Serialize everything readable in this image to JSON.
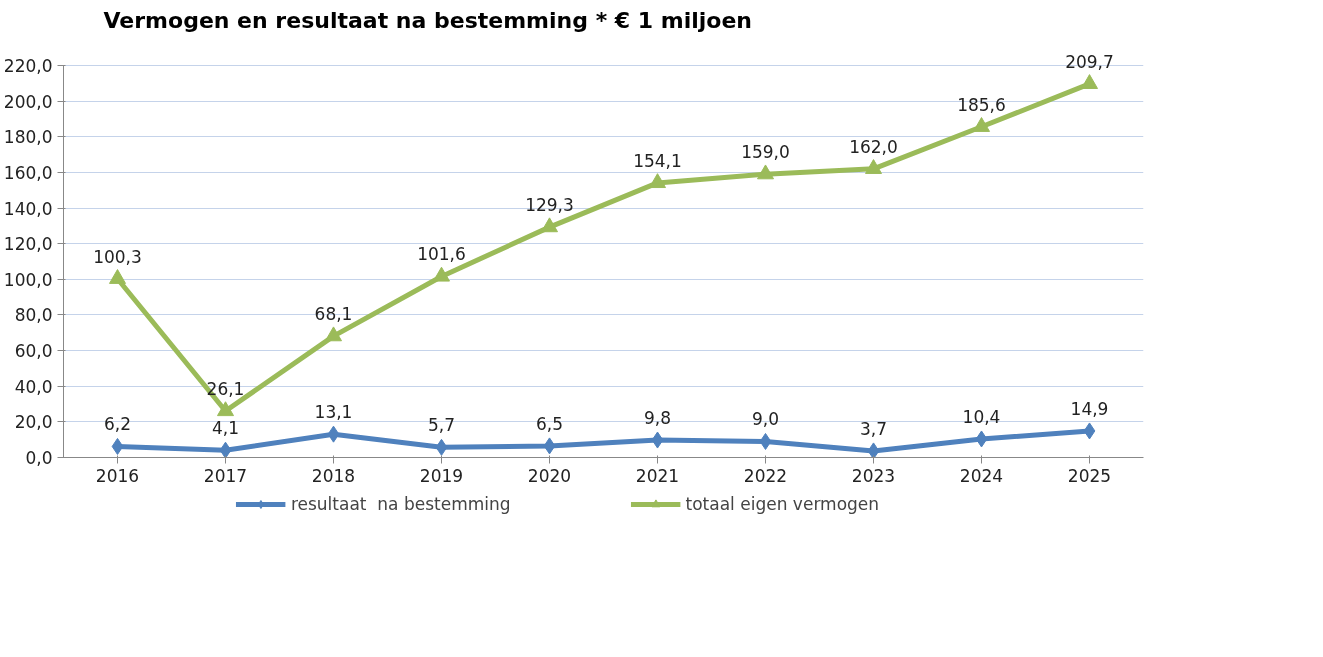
{
  "chart_data": {
    "type": "line",
    "title": "Vermogen en resultaat na bestemming * € 1 miljoen",
    "categories": [
      "2016",
      "2017",
      "2018",
      "2019",
      "2020",
      "2021",
      "2022",
      "2023",
      "2024",
      "2025"
    ],
    "series": [
      {
        "name": "resultaat  na bestemming",
        "color": "#4f81bd",
        "marker": "diamond",
        "values": [
          6.2,
          4.1,
          13.1,
          5.7,
          6.5,
          9.8,
          9.0,
          3.7,
          10.4,
          14.9
        ],
        "value_labels": [
          "6,2",
          "4,1",
          "13,1",
          "5,7",
          "6,5",
          "9,8",
          "9,0",
          "3,7",
          "10,4",
          "14,9"
        ]
      },
      {
        "name": "totaal eigen vermogen",
        "color": "#9bbb59",
        "marker": "triangle",
        "values": [
          100.3,
          26.1,
          68.1,
          101.6,
          129.3,
          154.1,
          159.0,
          162.0,
          185.6,
          209.7
        ],
        "value_labels": [
          "100,3",
          "26,1",
          "68,1",
          "101,6",
          "129,3",
          "154,1",
          "159,0",
          "162,0",
          "185,6",
          "209,7"
        ]
      }
    ],
    "ylim": [
      0,
      220
    ],
    "yticks": [
      {
        "value": 0,
        "label": "0,0"
      },
      {
        "value": 20,
        "label": "20,0"
      },
      {
        "value": 40,
        "label": "40,0"
      },
      {
        "value": 60,
        "label": "60,0"
      },
      {
        "value": 80,
        "label": "80,0"
      },
      {
        "value": 100,
        "label": "100,0"
      },
      {
        "value": 120,
        "label": "120,0"
      },
      {
        "value": 140,
        "label": "140,0"
      },
      {
        "value": 160,
        "label": "160,0"
      },
      {
        "value": 180,
        "label": "180,0"
      },
      {
        "value": 200,
        "label": "200,0"
      },
      {
        "value": 220,
        "label": "220,0"
      }
    ],
    "grid": "y",
    "legend": "bottom",
    "line_style": "solid"
  }
}
